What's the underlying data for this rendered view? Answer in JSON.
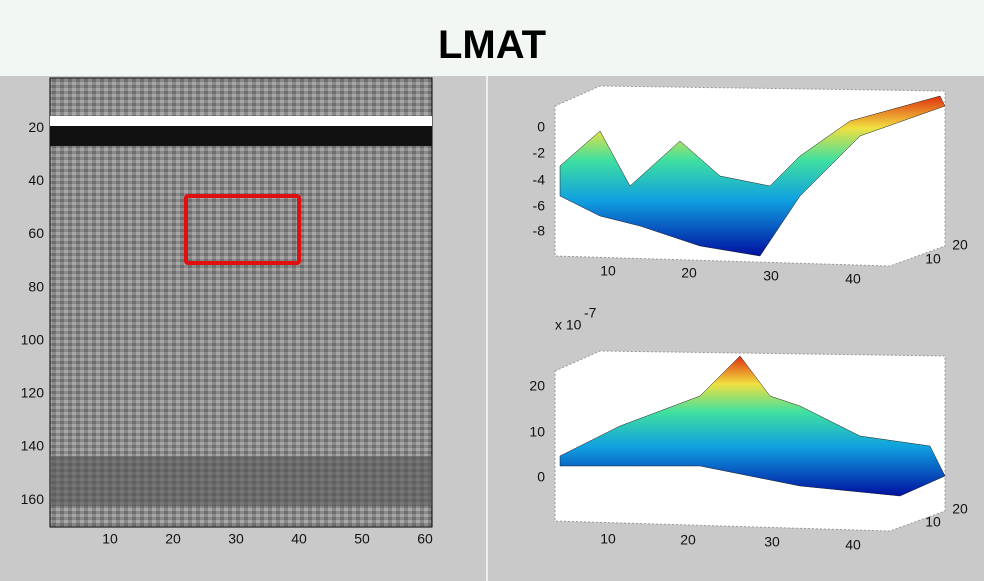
{
  "header": {
    "title": "LMAT"
  },
  "left_plot": {
    "yticks": [
      20,
      40,
      60,
      80,
      100,
      120,
      140,
      160
    ],
    "xticks": [
      10,
      20,
      30,
      40,
      50,
      60
    ]
  },
  "top_plot": {
    "zticks": [
      0,
      -2,
      -4,
      -6,
      -8
    ],
    "xticks": [
      10,
      20,
      30,
      40
    ],
    "yticks": [
      10,
      20
    ]
  },
  "bottom_plot": {
    "scale": "x 10",
    "scale_exponent": "-7",
    "zticks": [
      20,
      10,
      0
    ],
    "xticks": [
      10,
      20,
      30,
      40
    ],
    "yticks": [
      10,
      20
    ]
  }
}
